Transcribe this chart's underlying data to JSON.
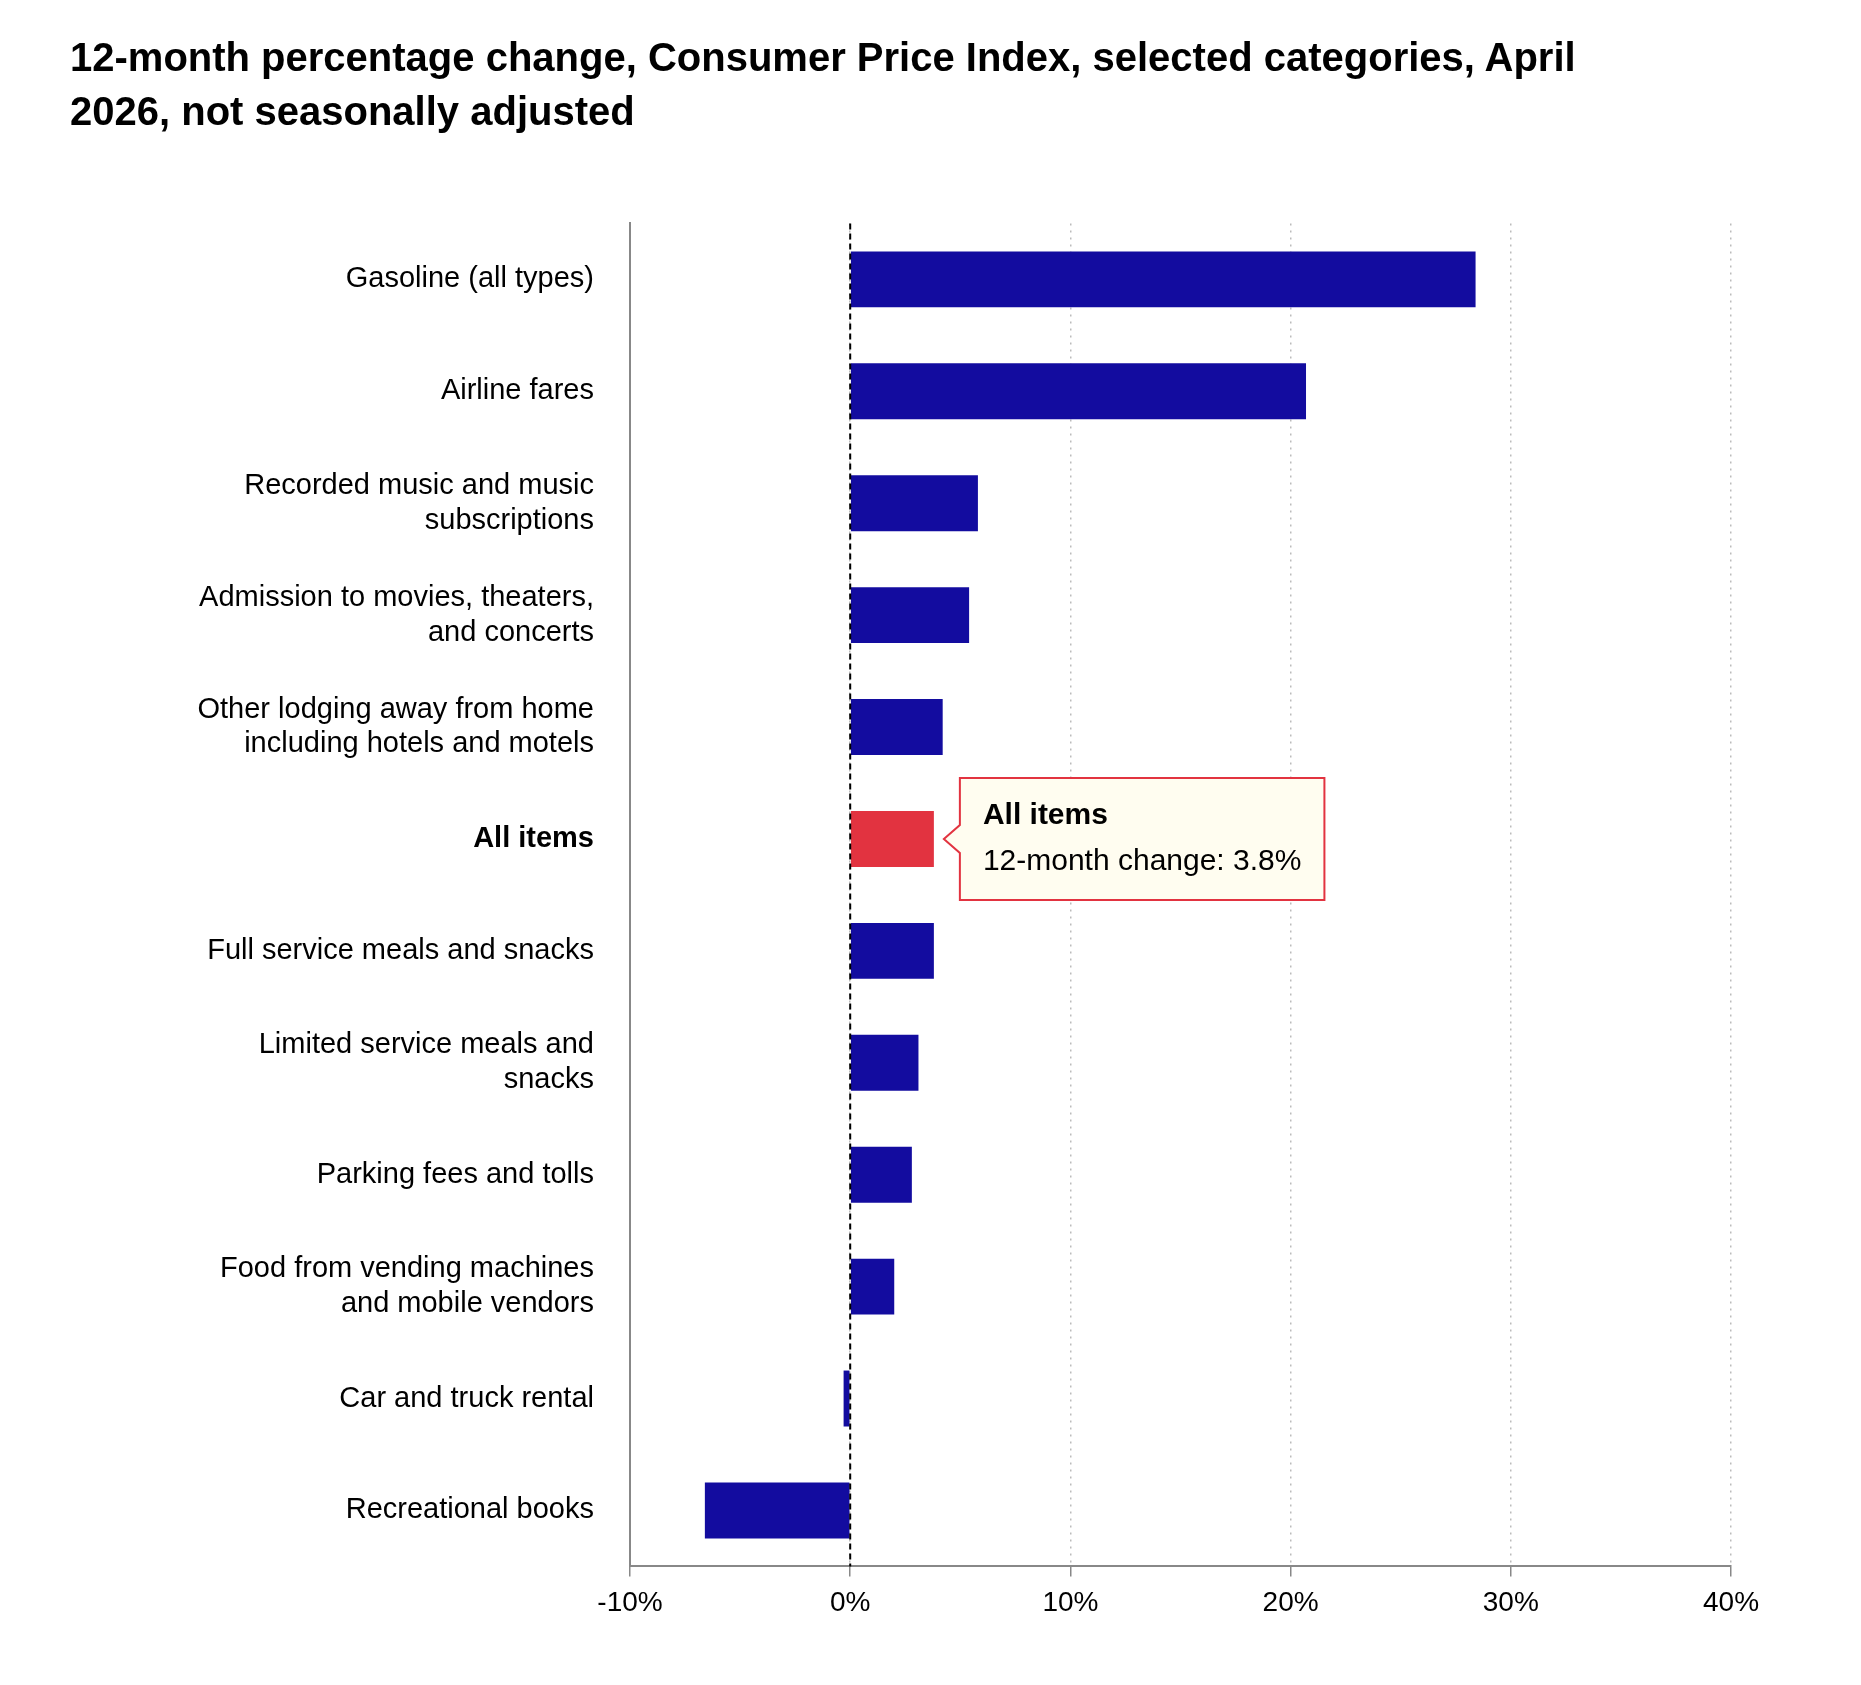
{
  "chart_data": {
    "type": "bar",
    "orientation": "horizontal",
    "title": "12-month percentage change, Consumer Price Index, selected categories, April 2026, not seasonally adjusted",
    "categories": [
      "Gasoline (all types)",
      "Airline fares",
      "Recorded music and music subscriptions",
      "Admission to movies, theaters, and concerts",
      "Other lodging away from home including hotels and motels",
      "All items",
      "Full service meals and snacks",
      "Limited service meals and snacks",
      "Parking fees and tolls",
      "Food from vending machines and mobile vendors",
      "Car and truck rental",
      "Recreational books"
    ],
    "values": [
      28.4,
      20.7,
      5.8,
      5.4,
      4.2,
      3.8,
      3.8,
      3.1,
      2.8,
      2.0,
      -0.3,
      -6.6
    ],
    "colors": [
      "#130c9f",
      "#130c9f",
      "#130c9f",
      "#130c9f",
      "#130c9f",
      "#e23340",
      "#130c9f",
      "#130c9f",
      "#130c9f",
      "#130c9f",
      "#130c9f",
      "#130c9f"
    ],
    "xlim": [
      -10,
      40
    ],
    "xticks": [
      {
        "value": -10,
        "label": "-10%"
      },
      {
        "value": 0,
        "label": "0%"
      },
      {
        "value": 10,
        "label": "10%"
      },
      {
        "value": 20,
        "label": "20%"
      },
      {
        "value": 30,
        "label": "30%"
      },
      {
        "value": 40,
        "label": "40%"
      }
    ],
    "grid": "x",
    "legend": false,
    "ref_lines": [
      {
        "axis": "x",
        "value": 0,
        "color": "#000000",
        "line_style": "dashed"
      }
    ],
    "annotations": [
      {
        "text": "All items\n12-month change: 3.8%",
        "x": 3.8,
        "y": "All items"
      }
    ]
  }
}
